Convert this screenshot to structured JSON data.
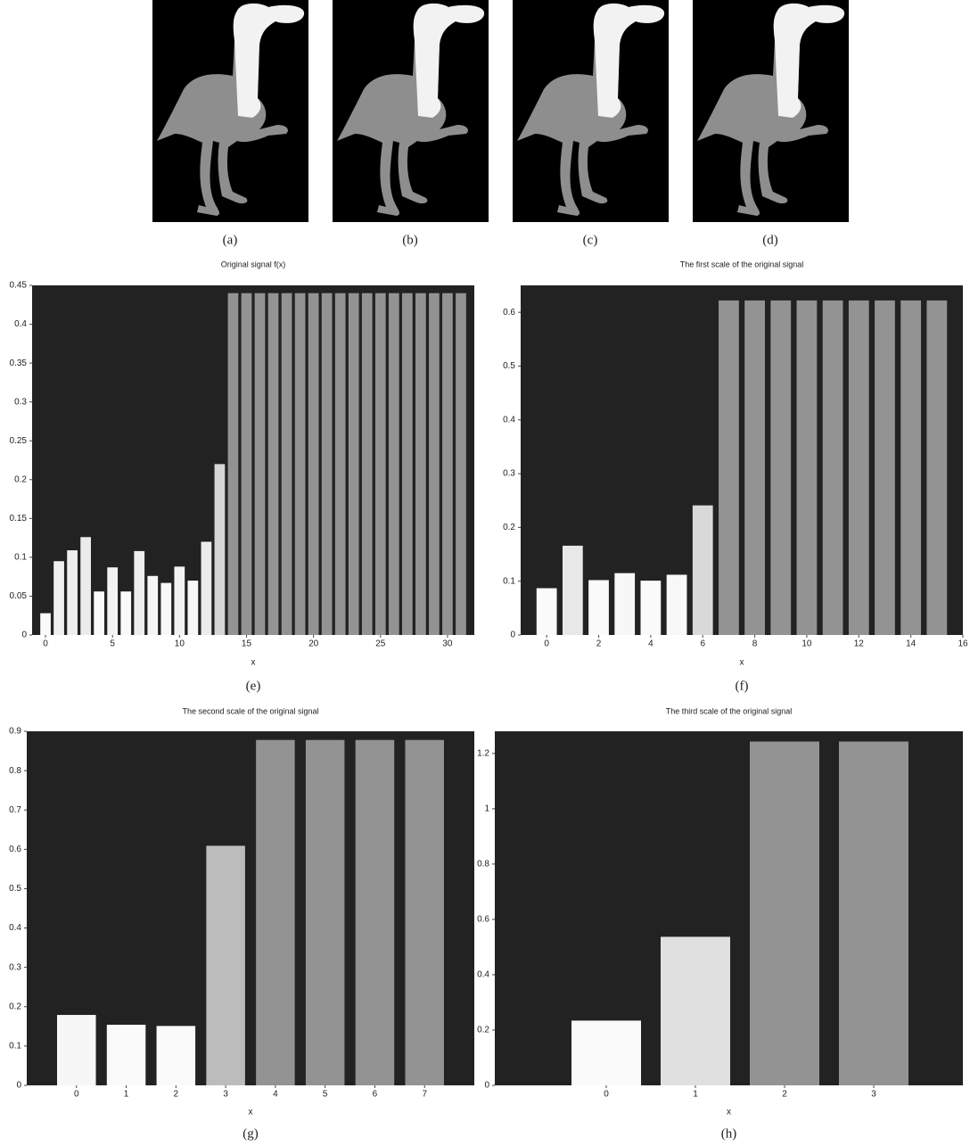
{
  "figure": {
    "image_captions": [
      "(a)",
      "(b)",
      "(c)",
      "(d)"
    ],
    "chart_captions": [
      "(e)",
      "(f)",
      "(g)",
      "(h)"
    ]
  },
  "chart_data": [
    {
      "type": "bar",
      "title": "Original signal f(x)",
      "xlabel": "x",
      "x": [
        0,
        1,
        2,
        3,
        4,
        5,
        6,
        7,
        8,
        9,
        10,
        11,
        12,
        13,
        14,
        15,
        16,
        17,
        18,
        19,
        20,
        21,
        22,
        23,
        24,
        25,
        26,
        27,
        28,
        29,
        30,
        31
      ],
      "values": [
        0.028,
        0.095,
        0.109,
        0.126,
        0.056,
        0.087,
        0.056,
        0.108,
        0.076,
        0.067,
        0.088,
        0.07,
        0.12,
        0.22,
        0.44,
        0.44,
        0.44,
        0.44,
        0.44,
        0.44,
        0.44,
        0.44,
        0.44,
        0.44,
        0.44,
        0.44,
        0.44,
        0.44,
        0.44,
        0.44,
        0.44,
        0.44
      ],
      "colors": [
        "#fafafa",
        "#f0f0f0",
        "#eeeeee",
        "#ebebeb",
        "#fafafa",
        "#f3f3f3",
        "#fafafa",
        "#eeeeee",
        "#f5f5f5",
        "#f8f8f8",
        "#f3f3f3",
        "#f7f7f7",
        "#ececec",
        "#d6d6d6",
        "#939393",
        "#939393",
        "#939393",
        "#939393",
        "#939393",
        "#939393",
        "#939393",
        "#939393",
        "#939393",
        "#939393",
        "#939393",
        "#939393",
        "#939393",
        "#939393",
        "#939393",
        "#939393",
        "#939393",
        "#939393"
      ],
      "xlim": [
        -1,
        32
      ],
      "ylim": [
        0,
        0.45
      ],
      "xticks": [
        0,
        5,
        10,
        15,
        20,
        25,
        30
      ],
      "yticks": [
        0,
        0.05,
        0.1,
        0.15,
        0.2,
        0.25,
        0.3,
        0.35,
        0.4,
        0.45
      ]
    },
    {
      "type": "bar",
      "title": "The first scale of the original signal",
      "xlabel": "x",
      "x": [
        0,
        1,
        2,
        3,
        4,
        5,
        6,
        7,
        8,
        9,
        10,
        11,
        12,
        13,
        14,
        15
      ],
      "values": [
        0.087,
        0.166,
        0.102,
        0.115,
        0.101,
        0.112,
        0.241,
        0.622,
        0.622,
        0.622,
        0.622,
        0.622,
        0.622,
        0.622,
        0.622,
        0.622
      ],
      "colors": [
        "#fafafa",
        "#e8e8e8",
        "#fafafa",
        "#f7f7f7",
        "#fafafa",
        "#f8f8f8",
        "#d9d9d9",
        "#939393",
        "#939393",
        "#939393",
        "#939393",
        "#939393",
        "#939393",
        "#939393",
        "#939393",
        "#939393"
      ],
      "xlim": [
        -1,
        16
      ],
      "ylim": [
        0,
        0.65
      ],
      "xticks": [
        0,
        2,
        4,
        6,
        8,
        10,
        12,
        14,
        16
      ],
      "yticks": [
        0,
        0.1,
        0.2,
        0.3,
        0.4,
        0.5,
        0.6
      ]
    },
    {
      "type": "bar",
      "title": "The second scale of the original signal",
      "xlabel": "x",
      "x": [
        0,
        1,
        2,
        3,
        4,
        5,
        6,
        7
      ],
      "values": [
        0.179,
        0.154,
        0.151,
        0.609,
        0.878,
        0.878,
        0.878,
        0.878
      ],
      "colors": [
        "#f7f7f7",
        "#fafafa",
        "#fafafa",
        "#bcbcbc",
        "#939393",
        "#939393",
        "#939393",
        "#939393"
      ],
      "xlim": [
        -1,
        8
      ],
      "ylim": [
        0,
        0.9
      ],
      "xticks": [
        0,
        1,
        2,
        3,
        4,
        5,
        6,
        7
      ],
      "yticks": [
        0,
        0.1,
        0.2,
        0.3,
        0.4,
        0.5,
        0.6,
        0.7,
        0.8,
        0.9
      ]
    },
    {
      "type": "bar",
      "title": "The third scale of the original signal",
      "xlabel": "x",
      "x": [
        0,
        1,
        2,
        3
      ],
      "values": [
        0.234,
        0.537,
        1.243,
        1.243
      ],
      "colors": [
        "#fafafa",
        "#e0e0e0",
        "#939393",
        "#939393"
      ],
      "xlim": [
        -1.25,
        4
      ],
      "ylim": [
        0,
        1.28
      ],
      "xticks": [
        0,
        1,
        2,
        3
      ],
      "yticks": [
        0,
        0.2,
        0.4,
        0.6,
        0.8,
        1,
        1.2
      ]
    }
  ]
}
